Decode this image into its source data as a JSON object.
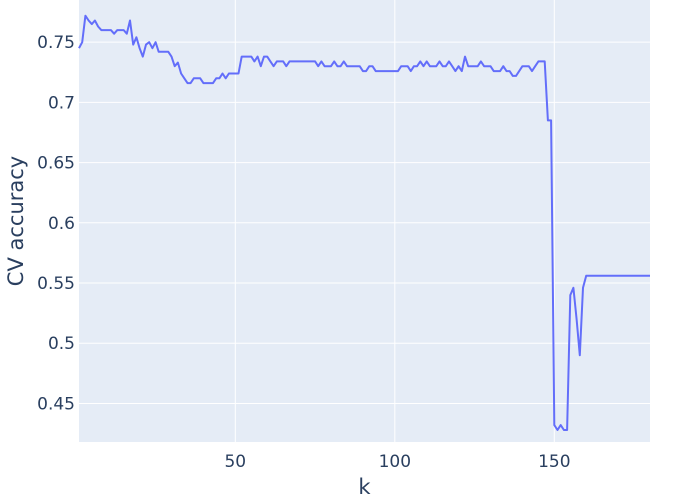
{
  "chart_data": {
    "type": "line",
    "xlabel": "k",
    "ylabel": "CV accuracy",
    "xlim": [
      1,
      180
    ],
    "ylim": [
      0.418,
      0.785
    ],
    "grid": true,
    "legend": "none",
    "colors": {
      "plot_background": "#E5ECF6",
      "grid": "#FFFFFF",
      "line": "#636EFA",
      "text": "#2A3F5F"
    },
    "x_ticks": [
      {
        "value": 50,
        "label": "50"
      },
      {
        "value": 100,
        "label": "100"
      },
      {
        "value": 150,
        "label": "150"
      }
    ],
    "y_ticks": [
      {
        "value": 0.45,
        "label": "0.45"
      },
      {
        "value": 0.5,
        "label": "0.5"
      },
      {
        "value": 0.55,
        "label": "0.55"
      },
      {
        "value": 0.6,
        "label": "0.6"
      },
      {
        "value": 0.65,
        "label": "0.65"
      },
      {
        "value": 0.7,
        "label": "0.7"
      },
      {
        "value": 0.75,
        "label": "0.75"
      }
    ],
    "series": [
      {
        "x": [
          1,
          2,
          3,
          4,
          5,
          6,
          7,
          8,
          9,
          10,
          11,
          12,
          13,
          14,
          15,
          16,
          17,
          18,
          19,
          20,
          21,
          22,
          23,
          24,
          25,
          26,
          27,
          28,
          29,
          30,
          31,
          32,
          33,
          34,
          35,
          36,
          37,
          38,
          39,
          40,
          41,
          42,
          43,
          44,
          45,
          46,
          47,
          48,
          49,
          50,
          51,
          52,
          53,
          54,
          55,
          56,
          57,
          58,
          59,
          60,
          61,
          62,
          63,
          64,
          65,
          66,
          67,
          68,
          69,
          70,
          71,
          72,
          73,
          74,
          75,
          76,
          77,
          78,
          79,
          80,
          81,
          82,
          83,
          84,
          85,
          86,
          87,
          88,
          89,
          90,
          91,
          92,
          93,
          94,
          95,
          96,
          97,
          98,
          99,
          100,
          101,
          102,
          103,
          104,
          105,
          106,
          107,
          108,
          109,
          110,
          111,
          112,
          113,
          114,
          115,
          116,
          117,
          118,
          119,
          120,
          121,
          122,
          123,
          124,
          125,
          126,
          127,
          128,
          129,
          130,
          131,
          132,
          133,
          134,
          135,
          136,
          137,
          138,
          139,
          140,
          141,
          142,
          143,
          144,
          145,
          146,
          147,
          148,
          149,
          150,
          151,
          152,
          153,
          154,
          155,
          156,
          157,
          158,
          159,
          160,
          180
        ],
        "y": [
          0.745,
          0.75,
          0.772,
          0.768,
          0.765,
          0.768,
          0.763,
          0.76,
          0.76,
          0.76,
          0.76,
          0.757,
          0.76,
          0.76,
          0.76,
          0.757,
          0.768,
          0.748,
          0.754,
          0.745,
          0.738,
          0.748,
          0.75,
          0.745,
          0.75,
          0.742,
          0.742,
          0.742,
          0.742,
          0.738,
          0.73,
          0.733,
          0.724,
          0.72,
          0.716,
          0.716,
          0.72,
          0.72,
          0.72,
          0.716,
          0.716,
          0.716,
          0.716,
          0.72,
          0.72,
          0.724,
          0.72,
          0.724,
          0.724,
          0.724,
          0.724,
          0.738,
          0.738,
          0.738,
          0.738,
          0.734,
          0.738,
          0.73,
          0.738,
          0.738,
          0.734,
          0.73,
          0.734,
          0.734,
          0.734,
          0.73,
          0.734,
          0.734,
          0.734,
          0.734,
          0.734,
          0.734,
          0.734,
          0.734,
          0.734,
          0.73,
          0.734,
          0.73,
          0.73,
          0.73,
          0.734,
          0.73,
          0.73,
          0.734,
          0.73,
          0.73,
          0.73,
          0.73,
          0.73,
          0.726,
          0.726,
          0.73,
          0.73,
          0.726,
          0.726,
          0.726,
          0.726,
          0.726,
          0.726,
          0.726,
          0.726,
          0.73,
          0.73,
          0.73,
          0.726,
          0.73,
          0.73,
          0.734,
          0.73,
          0.734,
          0.73,
          0.73,
          0.73,
          0.734,
          0.73,
          0.73,
          0.734,
          0.73,
          0.726,
          0.73,
          0.726,
          0.738,
          0.73,
          0.73,
          0.73,
          0.73,
          0.734,
          0.73,
          0.73,
          0.73,
          0.726,
          0.726,
          0.726,
          0.73,
          0.726,
          0.726,
          0.722,
          0.722,
          0.726,
          0.73,
          0.73,
          0.73,
          0.726,
          0.73,
          0.734,
          0.734,
          0.734,
          0.685,
          0.685,
          0.432,
          0.428,
          0.432,
          0.428,
          0.428,
          0.54,
          0.546,
          0.52,
          0.49,
          0.546,
          0.556,
          0.556
        ]
      }
    ]
  }
}
